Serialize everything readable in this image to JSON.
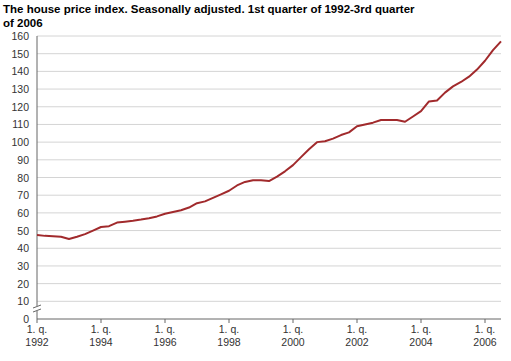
{
  "chart_data": {
    "type": "line",
    "title": "The house price index. Seasonally adjusted. 1st quarter of 1992-3rd quarter of 2006",
    "categories": [
      "1. q. 1992",
      null,
      null,
      null,
      null,
      null,
      null,
      null,
      "1. q. 1994",
      null,
      null,
      null,
      null,
      null,
      null,
      null,
      "1. q. 1996",
      null,
      null,
      null,
      null,
      null,
      null,
      null,
      "1. q. 1998",
      null,
      null,
      null,
      null,
      null,
      null,
      null,
      "1. q. 2000",
      null,
      null,
      null,
      null,
      null,
      null,
      null,
      "1. q. 2002",
      null,
      null,
      null,
      null,
      null,
      null,
      null,
      "1. q. 2004",
      null,
      null,
      null,
      null,
      null,
      null,
      null,
      "1. q. 2006",
      null,
      null
    ],
    "values": [
      47.5,
      47,
      46.8,
      46.5,
      45.2,
      46.5,
      48,
      50,
      52,
      52.5,
      54.5,
      55,
      55.5,
      56.2,
      57,
      58,
      59.5,
      60.5,
      61.5,
      63,
      65.5,
      66.5,
      68.5,
      70.5,
      72.5,
      75.5,
      77.5,
      78.5,
      78.5,
      78,
      80.5,
      83.5,
      87,
      91.5,
      96,
      100,
      100.5,
      102,
      104,
      105.5,
      109,
      110,
      111,
      112.5,
      112.5,
      112.5,
      111.5,
      114.5,
      117.5,
      123,
      123.5,
      128,
      131.5,
      134,
      137,
      141,
      146,
      152,
      157
    ],
    "color": "#a12a2c",
    "ylim": [
      0,
      160
    ],
    "yticks": [
      0,
      10,
      20,
      30,
      40,
      50,
      60,
      70,
      80,
      90,
      100,
      110,
      120,
      130,
      140,
      150,
      160
    ],
    "grid": true
  }
}
